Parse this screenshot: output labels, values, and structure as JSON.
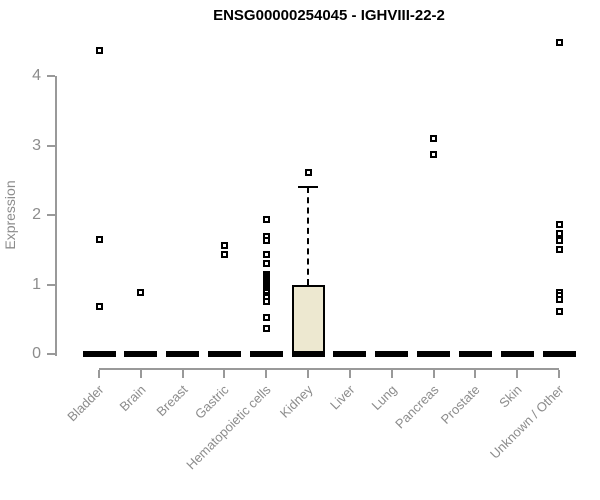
{
  "chart_data": {
    "type": "boxplot",
    "title": "ENSG00000254045 - IGHVIII-22-2",
    "ylabel": "Expression",
    "xlabel": "",
    "ylim": [
      0,
      4.6
    ],
    "yticks": [
      0,
      1,
      2,
      3,
      4
    ],
    "grid": false,
    "legend": false,
    "categories": [
      "Bladder",
      "Brain",
      "Breast",
      "Gastric",
      "Hematopoietic cells",
      "Kidney",
      "Liver",
      "Lung",
      "Pancreas",
      "Prostate",
      "Skin",
      "Unknown / Other"
    ],
    "boxes": [
      {
        "category": "Bladder",
        "q1": 0,
        "median": 0,
        "q3": 0,
        "whisker_low": 0,
        "whisker_high": 0,
        "outliers": [
          4.38,
          1.65,
          0.69
        ]
      },
      {
        "category": "Brain",
        "q1": 0,
        "median": 0,
        "q3": 0,
        "whisker_low": 0,
        "whisker_high": 0,
        "outliers": [
          0.88
        ]
      },
      {
        "category": "Breast",
        "q1": 0,
        "median": 0,
        "q3": 0,
        "whisker_low": 0,
        "whisker_high": 0,
        "outliers": []
      },
      {
        "category": "Gastric",
        "q1": 0,
        "median": 0,
        "q3": 0,
        "whisker_low": 0,
        "whisker_high": 0,
        "outliers": [
          1.57,
          1.44
        ]
      },
      {
        "category": "Hematopoietic cells",
        "q1": 0,
        "median": 0,
        "q3": 0,
        "whisker_low": 0,
        "whisker_high": 0,
        "outliers": [
          1.94,
          1.7,
          1.63,
          1.43,
          1.3,
          1.15,
          1.12,
          1.09,
          1.06,
          1.03,
          1.0,
          0.97,
          0.94,
          0.91,
          0.88,
          0.85,
          0.81,
          0.76,
          0.53,
          0.37
        ]
      },
      {
        "category": "Kidney",
        "q1": 0,
        "median": 0,
        "q3": 1.0,
        "whisker_low": 0,
        "whisker_high": 2.41,
        "outliers": [
          2.62
        ]
      },
      {
        "category": "Liver",
        "q1": 0,
        "median": 0,
        "q3": 0,
        "whisker_low": 0,
        "whisker_high": 0,
        "outliers": []
      },
      {
        "category": "Lung",
        "q1": 0,
        "median": 0,
        "q3": 0,
        "whisker_low": 0,
        "whisker_high": 0,
        "outliers": []
      },
      {
        "category": "Pancreas",
        "q1": 0,
        "median": 0,
        "q3": 0,
        "whisker_low": 0,
        "whisker_high": 0,
        "outliers": [
          3.11,
          2.87
        ]
      },
      {
        "category": "Prostate",
        "q1": 0,
        "median": 0,
        "q3": 0,
        "whisker_low": 0,
        "whisker_high": 0,
        "outliers": []
      },
      {
        "category": "Skin",
        "q1": 0,
        "median": 0,
        "q3": 0,
        "whisker_low": 0,
        "whisker_high": 0,
        "outliers": []
      },
      {
        "category": "Unknown / Other",
        "q1": 0,
        "median": 0,
        "q3": 0,
        "whisker_low": 0,
        "whisker_high": 0,
        "outliers": [
          4.49,
          1.86,
          1.73,
          1.63,
          1.51,
          0.89,
          0.84,
          0.78,
          0.61
        ]
      }
    ],
    "colors": {
      "box_fill": "#ede8d0",
      "box_border": "#000000",
      "median": "#000000",
      "outlier": "#000000",
      "axis_line": "#999999",
      "tick_label": "#8c8c8c",
      "title": "#000000",
      "background": "#ffffff"
    }
  }
}
